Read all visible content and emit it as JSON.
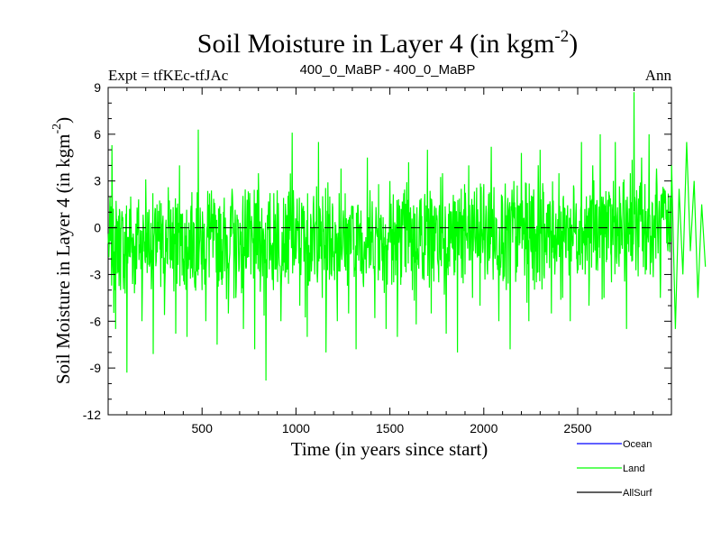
{
  "chart_data": {
    "type": "line",
    "title": "Soil Moisture in Layer 4 (in kgm",
    "title_sup": "-2",
    "title_end": ")",
    "subtitle_left": "Expt = tfKEc-tfJAc",
    "subtitle_center": "400_0_MaBP - 400_0_MaBP",
    "subtitle_right": "Ann",
    "xlabel": "Time (in years since start)",
    "ylabel": "Soil Moisture in Layer 4 (in kgm",
    "ylabel_sup": "-2",
    "ylabel_end": ")",
    "xlim": [
      0,
      2999
    ],
    "ylim": [
      -12,
      9
    ],
    "x_ticks": [
      500,
      1000,
      1500,
      2000,
      2500
    ],
    "y_ticks": [
      -12,
      -9,
      -6,
      -3,
      0,
      3,
      6,
      9
    ],
    "zero_line": "dashed",
    "legend_position": "bottom-right",
    "series": [
      {
        "name": "Ocean",
        "color": "#0000ff",
        "values": []
      },
      {
        "name": "Land",
        "color": "#00ff00",
        "x_start": 0,
        "x_step": 20,
        "values": [
          -1.0,
          5.3,
          -6.5,
          1.2,
          -3.1,
          -9.3,
          2.0,
          -4.2,
          0.8,
          -6.0,
          3.1,
          -2.5,
          -8.1,
          1.5,
          -3.8,
          -5.6,
          2.6,
          -1.2,
          -6.8,
          4.0,
          -2.0,
          -7.0,
          1.0,
          -3.5,
          6.3,
          -4.0,
          -6.0,
          2.2,
          -0.5,
          -7.5,
          0.9,
          -2.8,
          -5.5,
          2.5,
          -4.5,
          -1.5,
          -6.5,
          1.8,
          -3.0,
          -7.8,
          3.5,
          -2.2,
          -9.8,
          1.0,
          -4.0,
          2.4,
          -6.0,
          -1.0,
          -3.6,
          6.1,
          -2.0,
          -5.0,
          1.4,
          -7.0,
          0.5,
          -3.0,
          5.5,
          -4.5,
          -8.0,
          2.0,
          -1.5,
          -6.0,
          3.8,
          -2.5,
          -5.5,
          1.0,
          -7.8,
          0.2,
          -3.8,
          4.5,
          -2.0,
          -5.8,
          2.8,
          -1.0,
          -6.5,
          3.0,
          -3.5,
          -7.0,
          1.2,
          -2.5,
          4.2,
          -4.0,
          -6.2,
          1.8,
          -2.8,
          5.0,
          -5.5,
          -1.5,
          -3.5,
          3.5,
          -6.8,
          0.5,
          -2.0,
          -8.0,
          2.5,
          -3.0,
          4.0,
          -4.5,
          1.0,
          -5.0,
          2.8,
          -3.0,
          5.2,
          -2.0,
          -6.0,
          1.5,
          -4.0,
          -7.8,
          3.0,
          -2.5,
          4.8,
          -1.0,
          -6.0,
          2.0,
          -3.5,
          5.0,
          -3.0,
          1.5,
          -5.5,
          -2.0,
          3.5,
          -4.5,
          0.8,
          -6.0,
          2.5,
          -1.5,
          5.5,
          -3.0,
          -5.0,
          4.0,
          -2.0,
          6.0,
          -4.5,
          1.8,
          -3.5,
          5.5,
          -2.5,
          0.5,
          -6.5,
          3.5,
          8.7,
          -1.0,
          4.5,
          -3.0,
          6.0,
          -2.0,
          3.8,
          -4.5,
          2.5,
          -1.5,
          4.0,
          -6.5,
          2.5,
          -3.0,
          5.5,
          -1.5,
          3.0,
          -4.5,
          1.5,
          -2.5
        ]
      },
      {
        "name": "AllSurf",
        "color": "#000000",
        "values": []
      }
    ]
  }
}
